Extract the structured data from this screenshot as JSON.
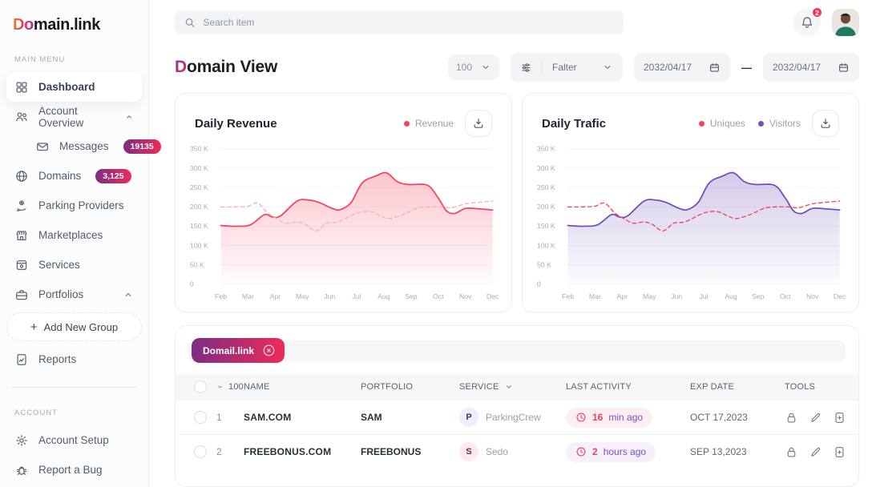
{
  "colors": {
    "accent_purple": "#7b2d85",
    "accent_red": "#ee2b57",
    "logo_orange": "#f0862c",
    "logo_pink": "#e23a63",
    "logo_purple": "#8b2f9a",
    "rose": "#f4435c",
    "rose_light": "#f6aebc",
    "purple": "#6f4fb8",
    "pill_pink_bg": "#fdeef2",
    "pill_purple_bg": "#f6f0fb",
    "activity_value": "#e8415f",
    "activity_unit": "#7a4fc0",
    "badge_text": "#ffffff"
  },
  "sidebar": {
    "logo_accent": "Do",
    "logo_rest": "main.link",
    "section_main": "MAIN MENU",
    "section_account": "ACCOUNT",
    "items": [
      {
        "label": "Dashboard"
      },
      {
        "label": "Account Overview"
      },
      {
        "label": "Messages",
        "badge": "19135"
      },
      {
        "label": "Domains",
        "badge": "3,125"
      },
      {
        "label": "Parking Providers"
      },
      {
        "label": "Marketplaces"
      },
      {
        "label": "Services"
      },
      {
        "label": "Portfolios"
      },
      {
        "label": "Add New Group",
        "prefix": "+"
      },
      {
        "label": "Reports"
      },
      {
        "label": "Account Setup"
      },
      {
        "label": "Report a Bug"
      }
    ]
  },
  "topbar": {
    "search_placeholder": "Search item",
    "notification_count": "2"
  },
  "header": {
    "title_accent": "D",
    "title_rest": "omain View",
    "page_size": "100",
    "filter_label": "Falter",
    "date_from": "2032/04/17",
    "date_range_sep": "—",
    "date_to": "2032/04/17"
  },
  "chart_data": [
    {
      "type": "line",
      "title": "Daily Revenue",
      "legend": [
        {
          "label": "Revenue",
          "color": "#f4435c"
        }
      ],
      "y_ticks": [
        "350 K",
        "300 K",
        "250 K",
        "200 K",
        "150 K",
        "100 K",
        "50 K",
        "0"
      ],
      "ymax": 350,
      "grid": true,
      "months": [
        "Feb",
        "Mar",
        "Apr",
        "May",
        "Jun",
        "Jul",
        "Aug",
        "Sep",
        "Oct",
        "Nov",
        "Dec"
      ],
      "series": [
        {
          "name": "Revenue",
          "unit": "K",
          "color": "#f4435c",
          "style": "solid",
          "fill": true,
          "points": [
            [
              0,
              152
            ],
            [
              0.6,
              150
            ],
            [
              1.1,
              154
            ],
            [
              1.6,
              180
            ],
            [
              1.9,
              174
            ],
            [
              2.2,
              177
            ],
            [
              2.8,
              215
            ],
            [
              3.2,
              218
            ],
            [
              3.6,
              212
            ],
            [
              4.1,
              196
            ],
            [
              4.4,
              193
            ],
            [
              4.8,
              212
            ],
            [
              5.2,
              262
            ],
            [
              5.7,
              280
            ],
            [
              6.1,
              288
            ],
            [
              6.5,
              265
            ],
            [
              6.9,
              258
            ],
            [
              7.6,
              256
            ],
            [
              8.0,
              223
            ],
            [
              8.3,
              190
            ],
            [
              8.6,
              183
            ],
            [
              9.0,
              196
            ],
            [
              9.5,
              195
            ],
            [
              10,
              192
            ]
          ]
        },
        {
          "name": "Revenue",
          "unit": "K",
          "color": "#f6aebc",
          "style": "dashed",
          "fill": false,
          "points": [
            [
              0,
              200
            ],
            [
              0.5,
              200
            ],
            [
              1.0,
              202
            ],
            [
              1.35,
              210
            ],
            [
              1.7,
              186
            ],
            [
              2.0,
              172
            ],
            [
              2.4,
              158
            ],
            [
              2.8,
              161
            ],
            [
              3.1,
              155
            ],
            [
              3.5,
              138
            ],
            [
              3.9,
              158
            ],
            [
              4.3,
              161
            ],
            [
              4.8,
              178
            ],
            [
              5.1,
              186
            ],
            [
              5.5,
              188
            ],
            [
              5.9,
              176
            ],
            [
              6.2,
              170
            ],
            [
              6.7,
              180
            ],
            [
              7.2,
              196
            ],
            [
              7.6,
              200
            ],
            [
              8.1,
              200
            ],
            [
              8.5,
              198
            ],
            [
              9.0,
              208
            ],
            [
              9.5,
              212
            ],
            [
              10,
              215
            ]
          ]
        }
      ]
    },
    {
      "type": "line",
      "title": "Daily Trafic",
      "legend": [
        {
          "label": "Uniques",
          "color": "#f4435c"
        },
        {
          "label": "Visitors",
          "color": "#6f4fb8"
        }
      ],
      "y_ticks": [
        "350 K",
        "300 K",
        "250 K",
        "200 K",
        "150 K",
        "100 K",
        "50 K",
        "0"
      ],
      "ymax": 350,
      "grid": true,
      "months": [
        "Feb",
        "Mar",
        "Apr",
        "May",
        "Jun",
        "Jul",
        "Aug",
        "Sep",
        "Oct",
        "Nov",
        "Dec"
      ],
      "series": [
        {
          "name": "Visitors",
          "unit": "K",
          "color": "#6f4fb8",
          "style": "solid",
          "fill": true,
          "points": [
            [
              0,
              152
            ],
            [
              0.6,
              150
            ],
            [
              1.1,
              154
            ],
            [
              1.6,
              180
            ],
            [
              1.9,
              174
            ],
            [
              2.2,
              177
            ],
            [
              2.8,
              215
            ],
            [
              3.2,
              218
            ],
            [
              3.6,
              212
            ],
            [
              4.1,
              196
            ],
            [
              4.4,
              193
            ],
            [
              4.8,
              212
            ],
            [
              5.2,
              262
            ],
            [
              5.7,
              280
            ],
            [
              6.1,
              288
            ],
            [
              6.5,
              265
            ],
            [
              6.9,
              258
            ],
            [
              7.6,
              256
            ],
            [
              8.0,
              223
            ],
            [
              8.3,
              190
            ],
            [
              8.6,
              183
            ],
            [
              9.0,
              196
            ],
            [
              9.5,
              195
            ],
            [
              10,
              192
            ]
          ]
        },
        {
          "name": "Uniques",
          "unit": "K",
          "color": "#ef4456",
          "style": "dashed",
          "fill": false,
          "points": [
            [
              0,
              200
            ],
            [
              0.5,
              200
            ],
            [
              1.0,
              202
            ],
            [
              1.35,
              210
            ],
            [
              1.7,
              186
            ],
            [
              2.0,
              172
            ],
            [
              2.4,
              158
            ],
            [
              2.8,
              161
            ],
            [
              3.1,
              155
            ],
            [
              3.5,
              138
            ],
            [
              3.9,
              158
            ],
            [
              4.3,
              161
            ],
            [
              4.8,
              178
            ],
            [
              5.1,
              186
            ],
            [
              5.5,
              188
            ],
            [
              5.9,
              176
            ],
            [
              6.2,
              170
            ],
            [
              6.7,
              180
            ],
            [
              7.2,
              196
            ],
            [
              7.6,
              200
            ],
            [
              8.1,
              200
            ],
            [
              8.5,
              198
            ],
            [
              9.0,
              208
            ],
            [
              9.5,
              212
            ],
            [
              10,
              215
            ]
          ]
        }
      ]
    }
  ],
  "table": {
    "chip_label": "Domail.link",
    "columns": {
      "count": "100",
      "name": "NAME",
      "portfolio": "PORTFOLIO",
      "service": "SERVICE",
      "activity": "LAST ACTIVITY",
      "exp": "EXP DATE",
      "tools": "TOOLS"
    },
    "rows": [
      {
        "num": "1",
        "name": "SAM.COM",
        "portfolio": "SAM",
        "service_initial": "P",
        "service": "ParkingCrew",
        "activity_value": "16",
        "activity_unit": "min ago",
        "exp": "OCT 17,2023"
      },
      {
        "num": "2",
        "name": "FREEBONUS.COM",
        "portfolio": "FREEBONUS",
        "service_initial": "S",
        "service": "Sedo",
        "activity_value": "2",
        "activity_unit": "hours ago",
        "exp": "SEP 13,2023"
      }
    ]
  }
}
